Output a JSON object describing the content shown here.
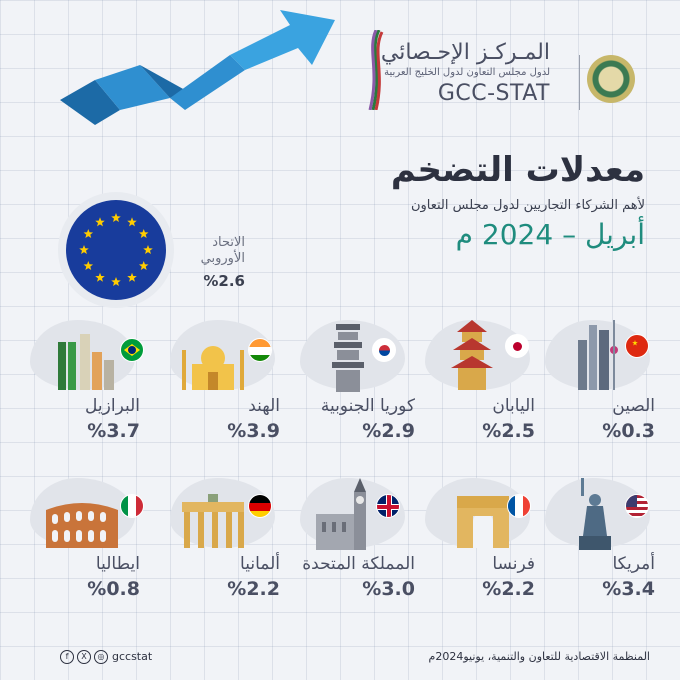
{
  "header": {
    "org_name_ar": "المـركـز الإحـصائي",
    "org_sub_ar": "لدول مجلس التعاون لدول الخليج العربية",
    "org_name_en": "GCC-STAT"
  },
  "title": "معدلات التضخم",
  "subtitle": "لأهم الشركاء التجاريين لدول مجلس التعاون",
  "date": "أبريل – 2024 م",
  "eu": {
    "label_line1": "الاتحاد",
    "label_line2": "الأوروبي",
    "value": "%2.6"
  },
  "row1": [
    {
      "name": "الصين",
      "value": "%0.3",
      "flag": "china"
    },
    {
      "name": "اليابان",
      "value": "%2.5",
      "flag": "japan"
    },
    {
      "name": "كوريا الجنوبية",
      "value": "%2.9",
      "flag": "korea"
    },
    {
      "name": "الهند",
      "value": "%3.9",
      "flag": "india"
    },
    {
      "name": "البرازيل",
      "value": "%3.7",
      "flag": "brazil"
    }
  ],
  "row2": [
    {
      "name": "أمريكا",
      "value": "%3.4",
      "flag": "usa"
    },
    {
      "name": "فرنسا",
      "value": "%2.2",
      "flag": "france"
    },
    {
      "name": "المملكة المتحدة",
      "value": "%3.0",
      "flag": "uk"
    },
    {
      "name": "ألمانيا",
      "value": "%2.2",
      "flag": "germany"
    },
    {
      "name": "ايطاليا",
      "value": "%0.8",
      "flag": "italy"
    }
  ],
  "footer": {
    "source": "المنظمة الاقتصادية للتعاون والتنمية، يونيو2024م",
    "handle": "gccstat"
  },
  "colors": {
    "teal": "#1f8c7e",
    "arrow_blue": "#2f8fd0",
    "eu_blue": "#183c9c"
  }
}
